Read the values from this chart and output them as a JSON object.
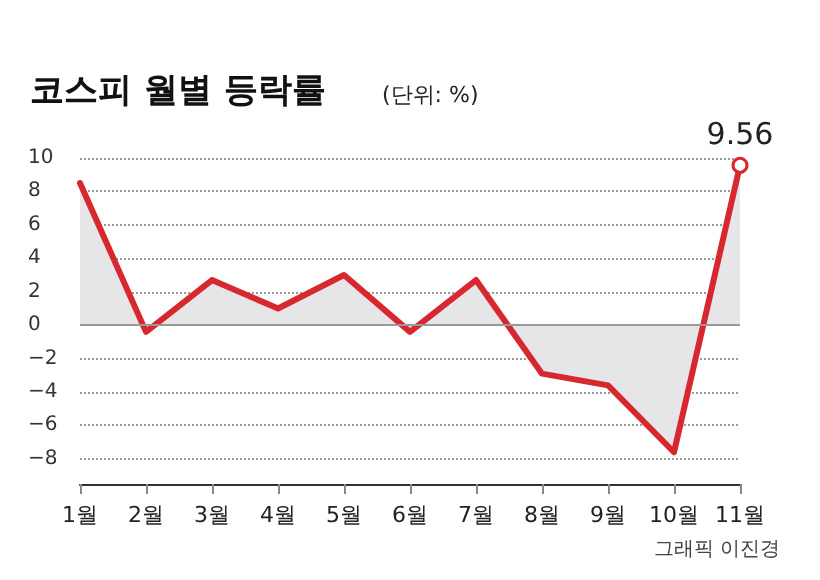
{
  "chart_data": {
    "type": "area",
    "title": "코스피 월별 등락률",
    "subtitle": "(단위: %)",
    "annotations": [
      "그래픽 이진경"
    ],
    "categories": [
      "1월",
      "2월",
      "3월",
      "4월",
      "5월",
      "6월",
      "7월",
      "8월",
      "9월",
      "10월",
      "11월"
    ],
    "series": [
      {
        "color": "#d7282f",
        "values": [
          8.5,
          -0.4,
          2.7,
          1.0,
          3.0,
          -0.4,
          2.7,
          -2.9,
          -3.6,
          -7.6,
          9.56
        ],
        "value_labels": [
          null,
          null,
          null,
          null,
          null,
          null,
          null,
          null,
          null,
          null,
          "9.56"
        ]
      }
    ],
    "ylim": [
      -9.5,
      10
    ],
    "yticks": [
      10,
      8,
      6,
      4,
      2,
      0,
      -2,
      -4,
      -6,
      -8
    ],
    "grid": "y",
    "ref_lines": [
      {
        "axis": "y",
        "value": 0,
        "color": "#999999"
      }
    ]
  }
}
